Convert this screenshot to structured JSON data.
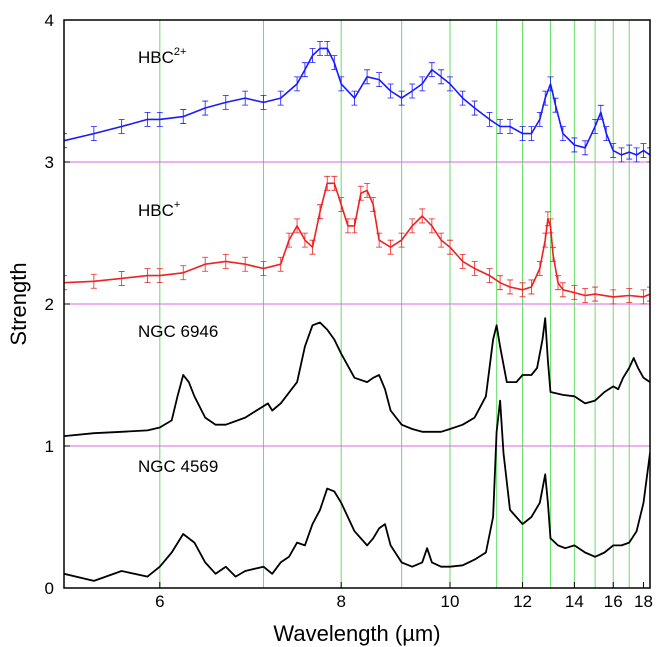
{
  "chart_data": {
    "type": "line",
    "title": "",
    "xlabel": "Wavelength (µm)",
    "ylabel": "Strength",
    "x_scale": "reciprocal",
    "xlim": [
      5.3,
      18.5
    ],
    "ylim": [
      0,
      4
    ],
    "x_ticks": [
      6,
      8,
      10,
      12,
      14,
      16,
      18
    ],
    "y_ticks": [
      0,
      1,
      2,
      3,
      4
    ],
    "vertical_lines_um": [
      6.0,
      7.0,
      8.0,
      9.0,
      10.0,
      11.2,
      12.0,
      13.0,
      14.0,
      15.0,
      16.0,
      17.0
    ],
    "horizontal_lines": [
      1,
      2,
      3
    ],
    "colors": {
      "vertical_lines": "#66dd66",
      "horizontal_lines": "#dd66dd",
      "HBC2+": "#1a1aff",
      "HBC+": "#ee2222",
      "NGC 6946": "#000000",
      "NGC 4569": "#000000"
    },
    "series": [
      {
        "name": "HBC",
        "name_sup": "2+",
        "color": "#1a1aff",
        "error_bars": true,
        "x": [
          5.3,
          5.5,
          5.7,
          5.9,
          6.0,
          6.2,
          6.4,
          6.6,
          6.8,
          7.0,
          7.2,
          7.4,
          7.5,
          7.6,
          7.7,
          7.8,
          7.9,
          8.0,
          8.2,
          8.4,
          8.6,
          8.8,
          9.0,
          9.2,
          9.4,
          9.6,
          9.8,
          10.0,
          10.3,
          10.6,
          11.0,
          11.3,
          11.6,
          12.0,
          12.3,
          12.6,
          12.8,
          13.0,
          13.2,
          13.5,
          14.0,
          14.5,
          15.0,
          15.3,
          15.6,
          16.0,
          16.5,
          17.0,
          17.5,
          18.0,
          18.5
        ],
        "y": [
          3.15,
          3.2,
          3.25,
          3.3,
          3.3,
          3.32,
          3.38,
          3.42,
          3.45,
          3.42,
          3.45,
          3.55,
          3.65,
          3.75,
          3.8,
          3.8,
          3.7,
          3.55,
          3.45,
          3.6,
          3.58,
          3.5,
          3.45,
          3.5,
          3.55,
          3.65,
          3.6,
          3.55,
          3.45,
          3.38,
          3.3,
          3.25,
          3.25,
          3.2,
          3.2,
          3.3,
          3.45,
          3.55,
          3.4,
          3.2,
          3.12,
          3.1,
          3.25,
          3.35,
          3.2,
          3.08,
          3.05,
          3.07,
          3.05,
          3.08,
          3.05
        ]
      },
      {
        "name": "HBC",
        "name_sup": "+",
        "color": "#ee2222",
        "error_bars": true,
        "x": [
          5.3,
          5.5,
          5.7,
          5.9,
          6.0,
          6.2,
          6.4,
          6.6,
          6.8,
          7.0,
          7.2,
          7.3,
          7.4,
          7.5,
          7.6,
          7.7,
          7.8,
          7.9,
          8.0,
          8.1,
          8.2,
          8.3,
          8.4,
          8.5,
          8.6,
          8.8,
          9.0,
          9.2,
          9.4,
          9.6,
          9.8,
          10.0,
          10.3,
          10.6,
          11.0,
          11.3,
          11.6,
          12.0,
          12.3,
          12.6,
          12.8,
          12.9,
          13.0,
          13.1,
          13.3,
          13.5,
          14.0,
          14.5,
          15.0,
          16.0,
          17.0,
          18.0,
          18.5
        ],
        "y": [
          2.15,
          2.16,
          2.18,
          2.2,
          2.2,
          2.22,
          2.28,
          2.3,
          2.28,
          2.25,
          2.28,
          2.45,
          2.55,
          2.45,
          2.4,
          2.65,
          2.85,
          2.85,
          2.7,
          2.55,
          2.55,
          2.78,
          2.8,
          2.7,
          2.45,
          2.4,
          2.45,
          2.55,
          2.62,
          2.55,
          2.45,
          2.4,
          2.3,
          2.25,
          2.2,
          2.15,
          2.12,
          2.1,
          2.12,
          2.25,
          2.45,
          2.6,
          2.55,
          2.35,
          2.15,
          2.1,
          2.08,
          2.06,
          2.07,
          2.05,
          2.06,
          2.05,
          2.07
        ]
      },
      {
        "name": "NGC 6946",
        "color": "#000000",
        "error_bars": false,
        "x": [
          5.3,
          5.5,
          5.7,
          5.9,
          6.0,
          6.1,
          6.15,
          6.2,
          6.25,
          6.3,
          6.4,
          6.5,
          6.6,
          6.8,
          7.0,
          7.05,
          7.1,
          7.2,
          7.4,
          7.5,
          7.6,
          7.7,
          7.8,
          7.9,
          8.0,
          8.2,
          8.4,
          8.5,
          8.6,
          8.7,
          8.8,
          9.0,
          9.2,
          9.4,
          9.6,
          9.8,
          10.0,
          10.3,
          10.6,
          10.9,
          11.1,
          11.2,
          11.3,
          11.5,
          11.8,
          12.0,
          12.3,
          12.5,
          12.6,
          12.7,
          12.8,
          12.9,
          13.0,
          13.5,
          14.0,
          14.5,
          15.0,
          15.5,
          16.0,
          16.3,
          16.6,
          17.0,
          17.3,
          17.6,
          18.0,
          18.5
        ],
        "y": [
          1.07,
          1.09,
          1.1,
          1.11,
          1.13,
          1.18,
          1.35,
          1.5,
          1.45,
          1.35,
          1.2,
          1.15,
          1.15,
          1.2,
          1.28,
          1.3,
          1.25,
          1.3,
          1.45,
          1.7,
          1.85,
          1.87,
          1.82,
          1.75,
          1.65,
          1.48,
          1.45,
          1.48,
          1.5,
          1.4,
          1.25,
          1.15,
          1.12,
          1.1,
          1.1,
          1.1,
          1.12,
          1.15,
          1.2,
          1.35,
          1.75,
          1.85,
          1.7,
          1.45,
          1.45,
          1.5,
          1.5,
          1.55,
          1.65,
          1.75,
          1.9,
          1.6,
          1.38,
          1.36,
          1.35,
          1.3,
          1.32,
          1.38,
          1.42,
          1.4,
          1.48,
          1.55,
          1.62,
          1.55,
          1.48,
          1.45
        ]
      },
      {
        "name": "NGC 4569",
        "color": "#000000",
        "error_bars": false,
        "x": [
          5.3,
          5.5,
          5.7,
          5.9,
          6.0,
          6.1,
          6.2,
          6.3,
          6.4,
          6.5,
          6.6,
          6.7,
          6.8,
          7.0,
          7.1,
          7.2,
          7.3,
          7.4,
          7.5,
          7.6,
          7.7,
          7.8,
          7.9,
          8.0,
          8.2,
          8.4,
          8.5,
          8.6,
          8.7,
          8.8,
          9.0,
          9.2,
          9.4,
          9.5,
          9.6,
          9.8,
          10.0,
          10.3,
          10.6,
          10.9,
          11.1,
          11.2,
          11.3,
          11.4,
          11.6,
          12.0,
          12.3,
          12.6,
          12.8,
          12.9,
          13.0,
          13.3,
          13.6,
          14.0,
          14.5,
          15.0,
          15.5,
          16.0,
          16.5,
          17.0,
          17.5,
          18.0,
          18.5
        ],
        "y": [
          0.1,
          0.05,
          0.12,
          0.08,
          0.15,
          0.25,
          0.38,
          0.32,
          0.18,
          0.1,
          0.15,
          0.08,
          0.12,
          0.15,
          0.1,
          0.18,
          0.22,
          0.32,
          0.3,
          0.45,
          0.55,
          0.7,
          0.68,
          0.6,
          0.4,
          0.3,
          0.35,
          0.42,
          0.45,
          0.3,
          0.18,
          0.15,
          0.18,
          0.28,
          0.18,
          0.15,
          0.15,
          0.16,
          0.2,
          0.25,
          0.5,
          1.1,
          1.32,
          0.95,
          0.55,
          0.45,
          0.5,
          0.6,
          0.8,
          0.6,
          0.35,
          0.3,
          0.28,
          0.3,
          0.25,
          0.22,
          0.25,
          0.3,
          0.3,
          0.32,
          0.4,
          0.6,
          0.95
        ]
      }
    ]
  }
}
